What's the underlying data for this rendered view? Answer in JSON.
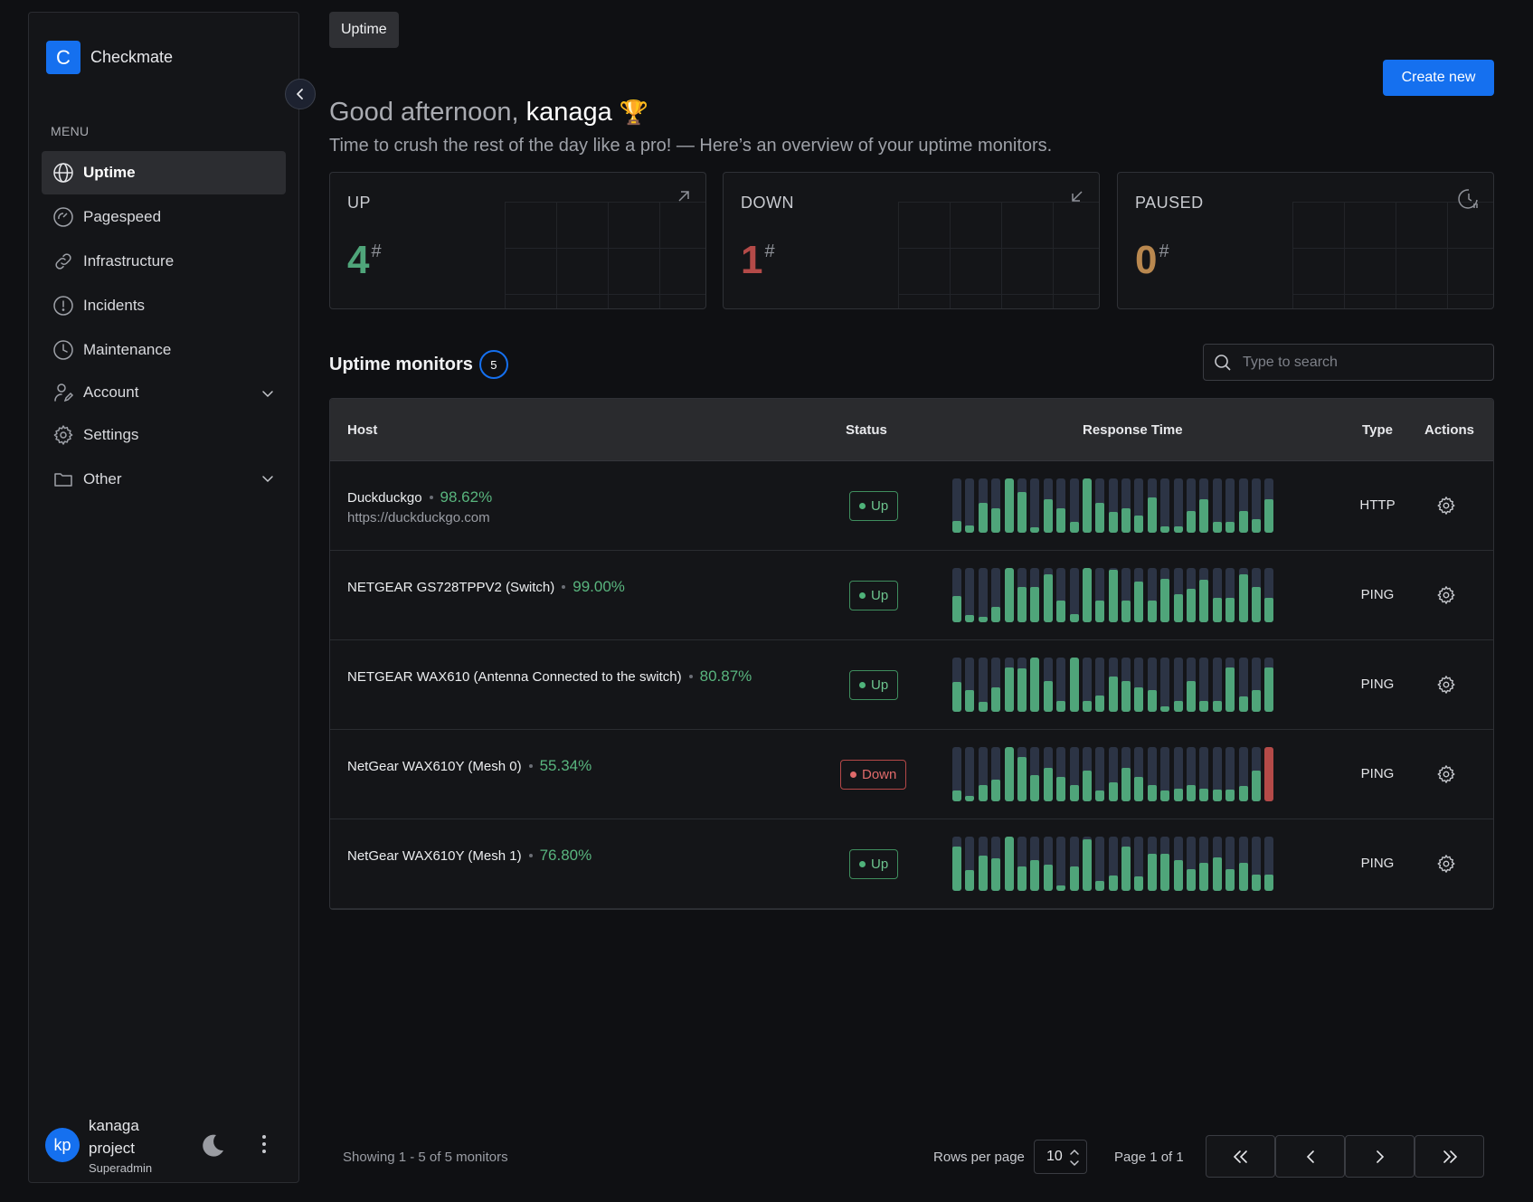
{
  "brand": {
    "logo_letter": "C",
    "name": "Checkmate"
  },
  "sidebar": {
    "menu_title": "MENU",
    "items": [
      {
        "label": "Uptime",
        "icon": "globe-icon",
        "active": true
      },
      {
        "label": "Pagespeed",
        "icon": "gauge-icon"
      },
      {
        "label": "Infrastructure",
        "icon": "link-icon"
      },
      {
        "label": "Incidents",
        "icon": "alert-circle-icon"
      },
      {
        "label": "Maintenance",
        "icon": "clock-icon"
      },
      {
        "label": "Account",
        "icon": "user-edit-icon",
        "expandable": true
      },
      {
        "label": "Settings",
        "icon": "gear-icon"
      },
      {
        "label": "Other",
        "icon": "folder-icon",
        "expandable": true
      }
    ],
    "user": {
      "initials": "kp",
      "name": "kanaga project",
      "role": "Superadmin"
    }
  },
  "breadcrumb": "Uptime",
  "create_button": "Create new",
  "greeting": {
    "prefix": "Good afternoon, ",
    "name": "kanaga",
    "emoji": "🏆",
    "subtitle": "Time to crush the rest of the day like a pro! — Here’s an overview of your uptime monitors."
  },
  "stats": [
    {
      "label": "UP",
      "value": "4",
      "suffix": "#",
      "color": "#4fa57a",
      "icon": "arrow-up-right-icon"
    },
    {
      "label": "DOWN",
      "value": "1",
      "suffix": "#",
      "color": "#b44a48",
      "icon": "arrow-down-left-icon"
    },
    {
      "label": "PAUSED",
      "value": "0",
      "suffix": "#",
      "color": "#b9884f",
      "icon": "clock-pause-icon"
    }
  ],
  "monitors_section": {
    "title": "Uptime monitors",
    "count": "5"
  },
  "search": {
    "placeholder": "Type to search",
    "value": ""
  },
  "table": {
    "columns": [
      "Host",
      "Status",
      "Response Time",
      "Type",
      "Actions"
    ],
    "rows": [
      {
        "name": "Duckduckgo",
        "uptime": "98.62%",
        "url": "https://duckduckgo.com",
        "status": "Up",
        "type": "HTTP",
        "bars": [
          0.22,
          0.13,
          0.55,
          0.45,
          1,
          0.75,
          0.1,
          0.62,
          0.45,
          0.2,
          1,
          0.55,
          0.38,
          0.45,
          0.32,
          0.65,
          0.12,
          0.12,
          0.4,
          0.62,
          0.2,
          0.2,
          0.4,
          0.25,
          0.62
        ],
        "bar_status": [
          "up",
          "up",
          "up",
          "up",
          "up",
          "up",
          "up",
          "up",
          "up",
          "up",
          "up",
          "up",
          "up",
          "up",
          "up",
          "up",
          "up",
          "up",
          "up",
          "up",
          "up",
          "up",
          "up",
          "up",
          "up"
        ]
      },
      {
        "name": "NETGEAR GS728TPPV2 (Switch)",
        "uptime": "99.00%",
        "url": "",
        "status": "Up",
        "type": "PING",
        "bars": [
          0.48,
          0.13,
          0.1,
          0.28,
          1,
          0.65,
          0.65,
          0.88,
          0.4,
          0.15,
          1,
          0.4,
          0.96,
          0.4,
          0.75,
          0.4,
          0.8,
          0.52,
          0.62,
          0.78,
          0.45,
          0.45,
          0.88,
          0.65,
          0.45
        ],
        "bar_status": [
          "up",
          "up",
          "up",
          "up",
          "up",
          "up",
          "up",
          "up",
          "up",
          "up",
          "up",
          "up",
          "up",
          "up",
          "up",
          "up",
          "up",
          "up",
          "up",
          "up",
          "up",
          "up",
          "up",
          "up",
          "up"
        ]
      },
      {
        "name": "NETGEAR WAX610 (Antenna Connected to the switch)",
        "uptime": "80.87%",
        "url": "",
        "status": "Up",
        "type": "PING",
        "bars": [
          0.55,
          0.4,
          0.18,
          0.45,
          0.82,
          0.8,
          1,
          0.56,
          0.2,
          1,
          0.2,
          0.3,
          0.65,
          0.56,
          0.45,
          0.4,
          0.1,
          0.2,
          0.56,
          0.2,
          0.2,
          0.82,
          0.28,
          0.4,
          0.82
        ],
        "bar_status": [
          "up",
          "up",
          "up",
          "up",
          "up",
          "up",
          "up",
          "up",
          "up",
          "up",
          "up",
          "up",
          "up",
          "up",
          "up",
          "up",
          "up",
          "up",
          "up",
          "up",
          "up",
          "up",
          "up",
          "up",
          "up"
        ]
      },
      {
        "name": "NetGear WAX610Y (Mesh 0)",
        "uptime": "55.34%",
        "url": "",
        "status": "Down",
        "type": "PING",
        "bars": [
          0.2,
          0.1,
          0.3,
          0.4,
          1,
          0.82,
          0.48,
          0.62,
          0.45,
          0.3,
          0.56,
          0.2,
          0.35,
          0.62,
          0.45,
          0.3,
          0.2,
          0.24,
          0.3,
          0.24,
          0.22,
          0.22,
          0.28,
          0.56,
          1
        ],
        "bar_status": [
          "up",
          "up",
          "up",
          "up",
          "up",
          "up",
          "up",
          "up",
          "up",
          "up",
          "up",
          "up",
          "up",
          "up",
          "up",
          "up",
          "up",
          "up",
          "up",
          "up",
          "up",
          "up",
          "up",
          "up",
          "down"
        ]
      },
      {
        "name": "NetGear WAX610Y (Mesh 1)",
        "uptime": "76.80%",
        "url": "",
        "status": "Up",
        "type": "PING",
        "bars": [
          0.82,
          0.38,
          0.65,
          0.6,
          1,
          0.45,
          0.56,
          0.48,
          0.1,
          0.45,
          0.95,
          0.18,
          0.28,
          0.82,
          0.26,
          0.68,
          0.68,
          0.56,
          0.4,
          0.52,
          0.62,
          0.4,
          0.52,
          0.3,
          0.3
        ],
        "bar_status": [
          "up",
          "up",
          "up",
          "up",
          "up",
          "up",
          "up",
          "up",
          "up",
          "up",
          "up",
          "up",
          "up",
          "up",
          "up",
          "up",
          "up",
          "up",
          "up",
          "up",
          "up",
          "up",
          "up",
          "up",
          "up"
        ]
      }
    ]
  },
  "footer": {
    "showing": "Showing 1 - 5 of 5 monitors",
    "rows_per_page_label": "Rows per page",
    "rows_per_page": "10",
    "page_info": "Page 1 of 1"
  },
  "colors": {
    "accent": "#1570ef",
    "up": "#4fa57a",
    "down": "#b44a48",
    "bar_bg": "#2c3445"
  }
}
